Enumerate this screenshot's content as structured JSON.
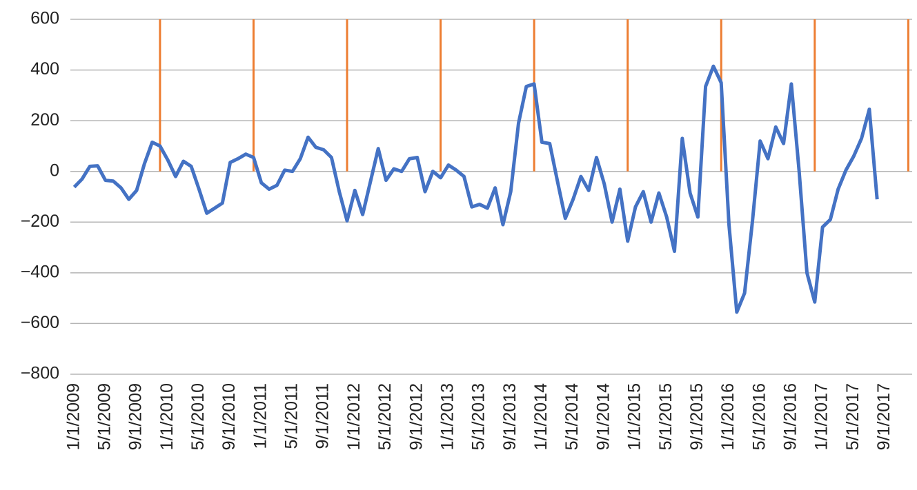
{
  "chart_data": {
    "type": "line",
    "categories": [
      "1/1/2009",
      null,
      null,
      null,
      "5/1/2009",
      null,
      null,
      null,
      "9/1/2009",
      null,
      null,
      null,
      "1/1/2010",
      null,
      null,
      null,
      "5/1/2010",
      null,
      null,
      null,
      "9/1/2010",
      null,
      null,
      null,
      "1/1/2011",
      null,
      null,
      null,
      "5/1/2011",
      null,
      null,
      null,
      "9/1/2011",
      null,
      null,
      null,
      "1/1/2012",
      null,
      null,
      null,
      "5/1/2012",
      null,
      null,
      null,
      "9/1/2012",
      null,
      null,
      null,
      "1/1/2013",
      null,
      null,
      null,
      "5/1/2013",
      null,
      null,
      null,
      "9/1/2013",
      null,
      null,
      null,
      "1/1/2014",
      null,
      null,
      null,
      "5/1/2014",
      null,
      null,
      null,
      "9/1/2014",
      null,
      null,
      null,
      "1/1/2015",
      null,
      null,
      null,
      "5/1/2015",
      null,
      null,
      null,
      "9/1/2015",
      null,
      null,
      null,
      "1/1/2016",
      null,
      null,
      null,
      "5/1/2016",
      null,
      null,
      null,
      "9/1/2016",
      null,
      null,
      null,
      "1/1/2017",
      null,
      null,
      null,
      "5/1/2017",
      null,
      null,
      null,
      "9/1/2017",
      null,
      null,
      null
    ],
    "series": [
      {
        "type": "line",
        "color": "#4472c4",
        "values": [
          -62,
          -30,
          20,
          22,
          -35,
          -38,
          -65,
          -110,
          -75,
          30,
          115,
          100,
          45,
          -20,
          40,
          20,
          -70,
          -165,
          -145,
          -125,
          35,
          50,
          68,
          55,
          -45,
          -70,
          -55,
          5,
          0,
          50,
          135,
          95,
          85,
          55,
          -80,
          -195,
          -75,
          -170,
          -40,
          90,
          -35,
          10,
          0,
          50,
          55,
          -80,
          0,
          -25,
          25,
          5,
          -20,
          -140,
          -130,
          -145,
          -65,
          -210,
          -80,
          190,
          335,
          345,
          115,
          110,
          -40,
          -185,
          -110,
          -20,
          -75,
          55,
          -50,
          -200,
          -70,
          -275,
          -140,
          -80,
          -200,
          -85,
          -180,
          -315,
          130,
          -85,
          -180,
          335,
          415,
          350,
          -210,
          -555,
          -480,
          -200,
          120,
          50,
          175,
          110,
          345,
          0,
          -400,
          -515,
          -220,
          -190,
          -70,
          5,
          60,
          130,
          245,
          -110,
          null,
          null,
          null,
          null
        ]
      },
      {
        "type": "bar",
        "color": "#ed7d31",
        "values": [
          null,
          null,
          null,
          null,
          null,
          null,
          null,
          null,
          null,
          null,
          null,
          600,
          null,
          null,
          null,
          null,
          null,
          null,
          null,
          null,
          null,
          null,
          null,
          600,
          null,
          null,
          null,
          null,
          null,
          null,
          null,
          null,
          null,
          null,
          null,
          600,
          null,
          null,
          null,
          null,
          null,
          null,
          null,
          null,
          null,
          null,
          null,
          600,
          null,
          null,
          null,
          null,
          null,
          null,
          null,
          null,
          null,
          null,
          null,
          600,
          null,
          null,
          null,
          null,
          null,
          null,
          null,
          null,
          null,
          null,
          null,
          600,
          null,
          null,
          null,
          null,
          null,
          null,
          null,
          null,
          null,
          null,
          null,
          600,
          null,
          null,
          null,
          null,
          null,
          null,
          null,
          null,
          null,
          null,
          null,
          600,
          null,
          null,
          null,
          null,
          null,
          null,
          null,
          null,
          null,
          null,
          null,
          600
        ]
      }
    ],
    "ylim": [
      -800,
      600
    ],
    "yticks": [
      {
        "value": -800,
        "label": "−800"
      },
      {
        "value": -600,
        "label": "−600"
      },
      {
        "value": -400,
        "label": "−400"
      },
      {
        "value": -200,
        "label": "−200"
      },
      0,
      200,
      400,
      600
    ],
    "grid": true
  }
}
